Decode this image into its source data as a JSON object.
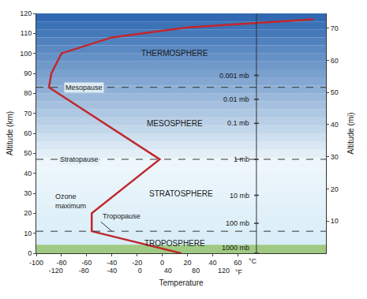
{
  "chart_data": {
    "type": "line",
    "x_label": "Temperature",
    "y_label": "Altitude (km)",
    "y2_label": "Altitude (mi)",
    "x_unit": "°C",
    "x2_unit": "°F",
    "series": [
      {
        "color": "#c1272d",
        "x": [
          15,
          -56,
          -56,
          -2,
          -90,
          -88,
          -80,
          -40,
          20,
          120
        ],
        "values": [
          0,
          11,
          20,
          47,
          83,
          90,
          100,
          108,
          113,
          117
        ]
      }
    ],
    "xlim": [
      -100,
      130
    ],
    "xticks": [
      -100,
      -80,
      -60,
      -40,
      -20,
      0,
      20,
      40,
      60
    ],
    "x2lim": [
      -148,
      266
    ],
    "x2ticks": [
      -120,
      -80,
      -40,
      0,
      40,
      80,
      120
    ],
    "ylim": [
      0,
      120
    ],
    "yticks": [
      0,
      10,
      20,
      30,
      40,
      50,
      60,
      70,
      80,
      90,
      100,
      110,
      120
    ],
    "y2lim": [
      0,
      74.56
    ],
    "y2ticks": [
      10,
      20,
      30,
      40,
      50,
      60,
      70
    ],
    "boundaries": [
      {
        "label": "Tropopause",
        "altitude": 11,
        "x": -40
      },
      {
        "label": "Stratopause",
        "altitude": 47,
        "x": -66
      },
      {
        "label": "Mesopause",
        "altitude": 83,
        "x": -62
      }
    ],
    "pressure_levels": [
      {
        "label": "1000 mb",
        "altitude": 0
      },
      {
        "label": "100 mb",
        "altitude": 15
      },
      {
        "label": "10 mb",
        "altitude": 29
      },
      {
        "label": "1 mb",
        "altitude": 47
      },
      {
        "label": "0.1 mb",
        "altitude": 65
      },
      {
        "label": "0.01 mb",
        "altitude": 77
      },
      {
        "label": "0.001 mb",
        "altitude": 89
      }
    ],
    "annotations": [
      {
        "text": "THERMOSPHERE",
        "x": 10,
        "y": 100
      },
      {
        "text": "MESOSPHERE",
        "x": 10,
        "y": 65
      },
      {
        "text": "STRATOSPHERE",
        "x": 15,
        "y": 30
      },
      {
        "text": "TROPOSPHERE",
        "x": 10,
        "y": 5
      },
      {
        "lines": [
          "Ozone",
          "maximum"
        ],
        "x": -86,
        "y": 26
      }
    ]
  }
}
